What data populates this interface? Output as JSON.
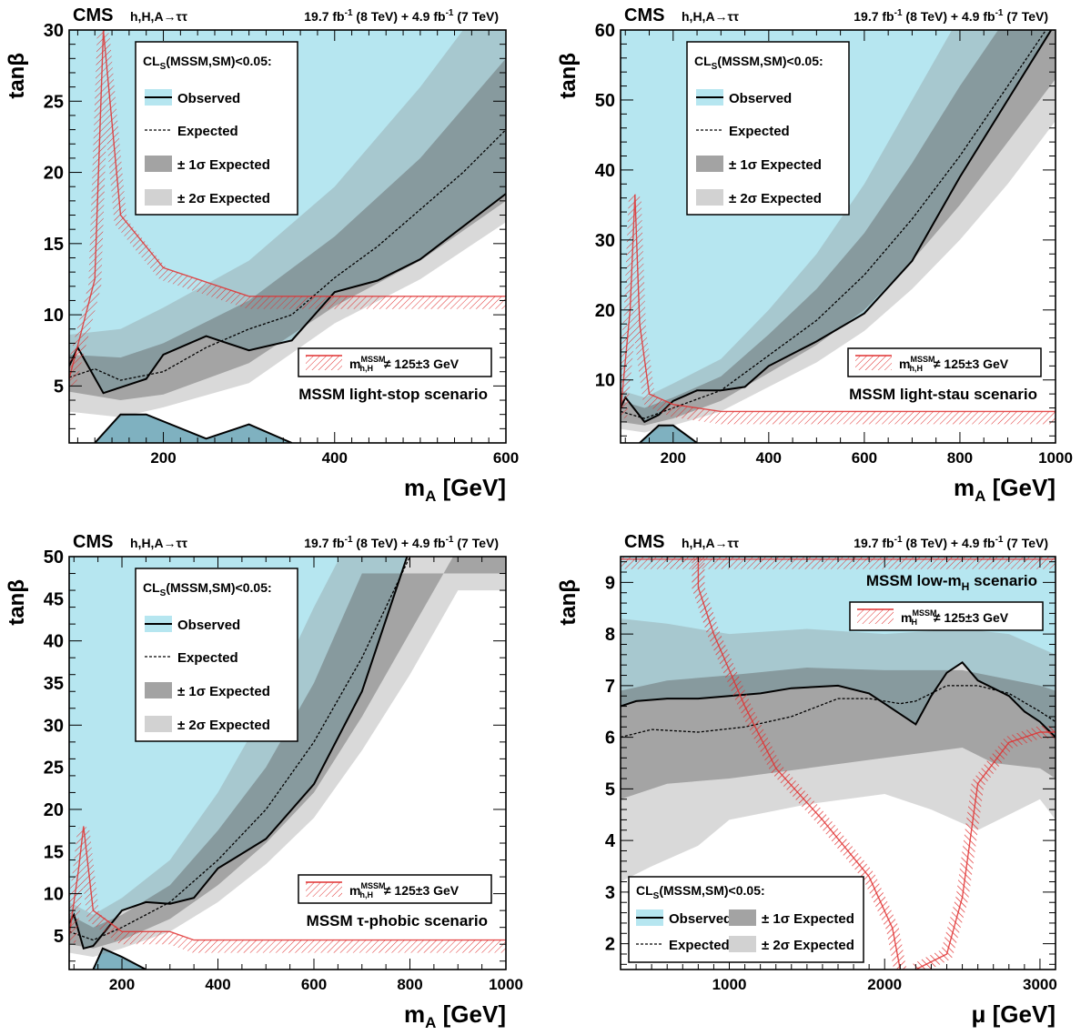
{
  "common": {
    "experiment": "CMS",
    "process": "h,H,A→ττ",
    "lumi_8": "19.7 fb",
    "lumi_8b": " (8 TeV) + 4.9 fb",
    "lumi_7b": " (7 TeV)",
    "lumi_exp": "-1",
    "legend_title": "CL",
    "legend_title_sub": "S",
    "legend_title_rest": "(MSSM,SM)<0.05:",
    "legend_observed": "Observed",
    "legend_expected": "Expected",
    "legend_1sigma": "± 1σ Expected",
    "legend_2sigma": "± 2σ Expected",
    "mass_label_m": "m",
    "mass_label_sub_hH": "h,H",
    "mass_label_sub_H": "H",
    "mass_label_sup": "MSSM",
    "mass_label_rest": "≠ 125±3 GeV",
    "ylabel": "tanβ"
  },
  "chart_data": [
    {
      "type": "area",
      "scenario": "MSSM light-stop scenario",
      "xlabel": "m_A [GeV]",
      "ylabel": "tanβ",
      "xlim": [
        90,
        600
      ],
      "ylim": [
        1,
        30
      ],
      "xticks": [
        200,
        400,
        600
      ],
      "yticks": [
        5,
        10,
        15,
        20,
        25,
        30
      ],
      "colors": {
        "observed_fill": "#b6e6f0",
        "band1": "#7fb1c0",
        "band2": "#9fcdd9",
        "excl": "#e03030"
      },
      "observed": {
        "x": [
          90,
          100,
          130,
          150,
          180,
          200,
          250,
          300,
          350,
          400,
          450,
          500,
          600
        ],
        "y": [
          6.4,
          7.7,
          4.5,
          4.9,
          5.5,
          7.2,
          8.5,
          7.5,
          8.2,
          11.6,
          12.4,
          13.9,
          18.5
        ]
      },
      "observed_lower": {
        "x": [
          120,
          150,
          180,
          250,
          300,
          350
        ],
        "y": [
          1,
          3.0,
          3.0,
          1.3,
          2.3,
          1
        ]
      },
      "expected": {
        "x": [
          90,
          120,
          150,
          200,
          250,
          300,
          350,
          400,
          450,
          500,
          550,
          600
        ],
        "y": [
          5.6,
          6.2,
          5.4,
          6.0,
          7.7,
          9.0,
          10.0,
          12.6,
          14.8,
          17.4,
          20.0,
          23.0
        ]
      },
      "band1_top": {
        "x": [
          90,
          150,
          200,
          300,
          400,
          500,
          550,
          600
        ],
        "y": [
          7.2,
          7.0,
          8.0,
          11.0,
          15.5,
          21.0,
          24.5,
          28.0
        ]
      },
      "band1_bot": {
        "x": [
          90,
          150,
          200,
          300,
          400,
          500,
          600
        ],
        "y": [
          4.6,
          4.0,
          4.4,
          6.6,
          10.6,
          13.8,
          18.0
        ]
      },
      "band2_top": {
        "x": [
          90,
          150,
          200,
          300,
          400,
          500,
          550
        ],
        "y": [
          8.6,
          9.0,
          10.5,
          13.8,
          19.0,
          26.0,
          30.0
        ]
      },
      "band2_bot": {
        "x": [
          90,
          150,
          200,
          300,
          400,
          500,
          600
        ],
        "y": [
          3.2,
          2.8,
          3.5,
          5.2,
          9.4,
          12.5,
          16.5
        ]
      },
      "exclusion_upper": {
        "x": [
          90,
          120,
          130,
          150,
          200,
          300,
          400,
          600
        ],
        "y": [
          5.5,
          12.5,
          30,
          17.0,
          13.3,
          11.3,
          11.3,
          11.3
        ]
      },
      "legend_position": "top-left",
      "label_position": "bottom-right"
    },
    {
      "type": "area",
      "scenario": "MSSM light-stau scenario",
      "xlabel": "m_A [GeV]",
      "ylabel": "tanβ",
      "xlim": [
        90,
        1000
      ],
      "ylim": [
        1,
        60
      ],
      "xticks": [
        200,
        400,
        600,
        800,
        1000
      ],
      "yticks": [
        10,
        20,
        30,
        40,
        50,
        60
      ],
      "colors": {
        "observed_fill": "#b6e6f0",
        "band1": "#7fb1c0",
        "band2": "#9fcdd9",
        "excl": "#e03030"
      },
      "observed": {
        "x": [
          90,
          100,
          140,
          170,
          200,
          250,
          300,
          350,
          400,
          500,
          600,
          700,
          800,
          900,
          1000
        ],
        "y": [
          6.0,
          7.5,
          4.0,
          5.0,
          7.0,
          8.5,
          8.5,
          9.0,
          12.0,
          15.5,
          19.5,
          27.0,
          39.0,
          50.0,
          61.0
        ]
      },
      "observed_lower": {
        "x": [
          130,
          170,
          200,
          250
        ],
        "y": [
          1,
          3.5,
          3.5,
          1
        ]
      },
      "expected": {
        "x": [
          90,
          140,
          200,
          300,
          400,
          500,
          600,
          700,
          800,
          900,
          1000
        ],
        "y": [
          5.5,
          4.5,
          6.0,
          8.5,
          13.5,
          18.5,
          25.0,
          33.0,
          42.0,
          52.0,
          62.0
        ]
      },
      "band1_top": {
        "x": [
          90,
          140,
          200,
          300,
          400,
          500,
          600,
          700,
          800,
          900
        ],
        "y": [
          7.0,
          6.0,
          7.5,
          10.5,
          16.5,
          23.0,
          31.0,
          41.0,
          52.0,
          62.0
        ]
      },
      "band1_bot": {
        "x": [
          90,
          140,
          200,
          300,
          400,
          500,
          600,
          700,
          800,
          900,
          1000
        ],
        "y": [
          4.0,
          3.5,
          4.5,
          7.0,
          11.0,
          15.0,
          20.0,
          27.0,
          35.0,
          44.0,
          53.0
        ]
      },
      "band2_top": {
        "x": [
          90,
          140,
          200,
          300,
          400,
          500,
          600,
          700,
          800
        ],
        "y": [
          8.5,
          7.5,
          9.5,
          13.0,
          20.0,
          28.0,
          38.0,
          50.0,
          62.0
        ]
      },
      "band2_bot": {
        "x": [
          90,
          140,
          200,
          300,
          400,
          500,
          600,
          700,
          800,
          900,
          1000
        ],
        "y": [
          3.0,
          2.5,
          3.5,
          5.5,
          9.0,
          12.5,
          17.0,
          23.0,
          30.0,
          38.0,
          47.0
        ]
      },
      "exclusion_upper": {
        "x": [
          90,
          110,
          120,
          130,
          150,
          200,
          300,
          1000
        ],
        "y": [
          5.5,
          20.0,
          36.5,
          18.0,
          8.0,
          6.5,
          5.5,
          5.5
        ]
      },
      "legend_position": "top-left",
      "label_position": "bottom-right"
    },
    {
      "type": "area",
      "scenario": "MSSM τ-phobic scenario",
      "xlabel": "m_A [GeV]",
      "ylabel": "tanβ",
      "xlim": [
        90,
        1000
      ],
      "ylim": [
        1,
        50
      ],
      "xticks": [
        200,
        400,
        600,
        800,
        1000
      ],
      "yticks": [
        5,
        10,
        15,
        20,
        25,
        30,
        35,
        40,
        45,
        50
      ],
      "colors": {
        "observed_fill": "#b6e6f0",
        "band1": "#7fb1c0",
        "band2": "#9fcdd9",
        "excl": "#e03030"
      },
      "observed": {
        "x": [
          90,
          100,
          120,
          140,
          200,
          250,
          300,
          350,
          400,
          500,
          600,
          700,
          800
        ],
        "y": [
          6.5,
          7.5,
          3.5,
          3.8,
          8.0,
          9.0,
          8.8,
          9.5,
          13.0,
          16.5,
          23.0,
          34.0,
          51.0
        ]
      },
      "observed_lower": {
        "x": [
          140,
          160,
          200,
          250
        ],
        "y": [
          1,
          3.5,
          2.5,
          1
        ]
      },
      "expected": {
        "x": [
          90,
          140,
          200,
          300,
          400,
          500,
          600,
          700,
          800,
          1000
        ],
        "y": [
          5.5,
          4.5,
          6.0,
          9.0,
          14.0,
          20.0,
          28.0,
          38.0,
          50.0,
          55.0
        ]
      },
      "band1_top": {
        "x": [
          90,
          140,
          200,
          300,
          400,
          500,
          600,
          700
        ],
        "y": [
          7.5,
          6.0,
          7.5,
          11.0,
          17.5,
          25.0,
          35.0,
          48.0
        ]
      },
      "band1_bot": {
        "x": [
          90,
          140,
          200,
          300,
          400,
          500,
          600,
          700,
          800,
          900
        ],
        "y": [
          4.0,
          3.5,
          4.5,
          7.0,
          11.0,
          16.0,
          22.0,
          31.0,
          41.0,
          51.0
        ]
      },
      "band2_top": {
        "x": [
          90,
          140,
          200,
          300,
          400,
          500,
          600,
          700
        ],
        "y": [
          9.0,
          7.5,
          9.5,
          14.0,
          22.0,
          32.0,
          44.0,
          55.0
        ]
      },
      "band2_bot": {
        "x": [
          90,
          140,
          200,
          300,
          400,
          500,
          600,
          700,
          800,
          900
        ],
        "y": [
          3.0,
          2.5,
          3.5,
          5.5,
          9.0,
          13.5,
          19.0,
          27.0,
          36.0,
          46.0
        ]
      },
      "exclusion_upper": {
        "x": [
          90,
          110,
          120,
          140,
          200,
          300,
          350,
          1000
        ],
        "y": [
          5.0,
          13.0,
          18.0,
          8.0,
          5.5,
          5.5,
          4.5,
          4.5
        ]
      },
      "legend_position": "top-left",
      "label_position": "bottom-right"
    },
    {
      "type": "area",
      "scenario": "MSSM low-m_H scenario",
      "xlabel": "μ [GeV]",
      "ylabel": "tanβ",
      "xlim": [
        300,
        3100
      ],
      "ylim": [
        1.5,
        9.5
      ],
      "xticks": [
        1000,
        2000,
        3000
      ],
      "yticks": [
        2,
        3,
        4,
        5,
        6,
        7,
        8,
        9
      ],
      "colors": {
        "observed_fill": "#b6e6f0",
        "band1": "#7fb1c0",
        "band2": "#9fcdd9",
        "excl": "#e03030"
      },
      "observed": {
        "x": [
          300,
          400,
          600,
          800,
          1000,
          1200,
          1400,
          1700,
          1900,
          2000,
          2100,
          2200,
          2300,
          2400,
          2500,
          2600,
          2800,
          2900,
          3000,
          3100
        ],
        "y": [
          6.6,
          6.7,
          6.75,
          6.75,
          6.8,
          6.85,
          6.95,
          7.0,
          6.85,
          6.65,
          6.45,
          6.25,
          6.8,
          7.25,
          7.45,
          7.1,
          6.8,
          6.5,
          6.3,
          6.0
        ]
      },
      "expected": {
        "x": [
          300,
          500,
          800,
          1100,
          1400,
          1700,
          1900,
          2100,
          2200,
          2400,
          2600,
          2800,
          3000,
          3100
        ],
        "y": [
          6.0,
          6.15,
          6.1,
          6.2,
          6.4,
          6.75,
          6.75,
          6.65,
          6.7,
          7.0,
          7.0,
          6.85,
          6.5,
          6.3
        ]
      },
      "band1_top": {
        "x": [
          300,
          600,
          1000,
          1500,
          2000,
          2500,
          3000,
          3100
        ],
        "y": [
          6.9,
          7.1,
          7.2,
          7.35,
          7.3,
          7.3,
          7.0,
          6.9
        ]
      },
      "band1_bot": {
        "x": [
          300,
          600,
          1000,
          1500,
          2000,
          2500,
          2700,
          3000,
          3100
        ],
        "y": [
          4.8,
          5.1,
          5.2,
          5.4,
          5.6,
          5.8,
          5.5,
          5.4,
          5.2
        ]
      },
      "band2_top": {
        "x": [
          300,
          600,
          1000,
          1500,
          2000,
          2500,
          2800,
          3100
        ],
        "y": [
          8.3,
          8.2,
          8.0,
          8.1,
          8.0,
          8.1,
          8.0,
          7.6
        ]
      },
      "band2_bot": {
        "x": [
          300,
          500,
          800,
          1000,
          1500,
          2000,
          2300,
          2600,
          2800,
          3000,
          3100
        ],
        "y": [
          3.2,
          3.5,
          3.9,
          4.4,
          4.7,
          4.9,
          4.6,
          4.2,
          4.5,
          4.8,
          4.4
        ]
      },
      "exclusion_top": {
        "x": [
          300,
          3100
        ],
        "y": [
          9.45,
          9.45
        ]
      },
      "exclusion_left": {
        "x": [
          800,
          800,
          900,
          1100,
          1300,
          1600,
          1900,
          2050,
          2100
        ],
        "y": [
          9.5,
          8.9,
          8.0,
          6.6,
          5.4,
          4.4,
          3.3,
          2.3,
          1.5
        ]
      },
      "exclusion_right": {
        "x": [
          2200,
          2400,
          2500,
          2600,
          2800,
          3000,
          3100
        ],
        "y": [
          1.5,
          1.8,
          2.9,
          5.1,
          5.9,
          6.1,
          6.1
        ]
      },
      "legend_position": "bottom-left",
      "label_position": "top-right"
    }
  ]
}
